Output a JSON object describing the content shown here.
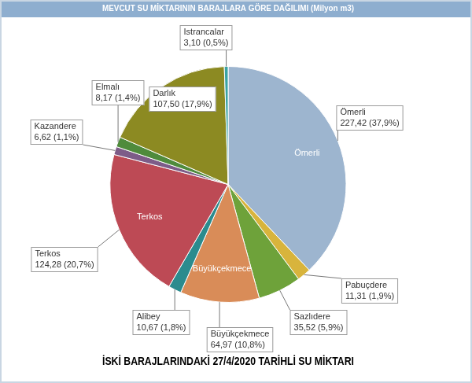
{
  "chart_data": {
    "type": "pie",
    "title": "MEVCUT SU MİKTARININ BARAJLARA GÖRE DAĞILIMI (Milyon m3)",
    "subtitle": "İSKİ BARAJLARINDAKİ 27/4/2020 TARİHLİ SU MİKTARI",
    "categories": [
      "Ömerli",
      "Pabuçdere",
      "Sazlıdere",
      "Büyükçekmece",
      "Alibey",
      "Terkos",
      "Kazandere",
      "Elmalı",
      "Darlık",
      "Istrancalar"
    ],
    "values": [
      227.42,
      11.31,
      35.52,
      64.97,
      10.67,
      124.28,
      6.62,
      8.17,
      107.5,
      3.1
    ],
    "value_labels": [
      "227,42 (37,9%)",
      "11,31 (1,9%)",
      "35,52 (5,9%)",
      "64,97 (10,8%)",
      "10,67 (1,8%)",
      "124,28 (20,7%)",
      "6,62 (1,1%)",
      "8,17 (1,4%)",
      "107,50 (17,9%)",
      "3,10 (0,5%)"
    ],
    "inside_labels": [
      "Ömerli",
      null,
      null,
      "Büyükçekmece",
      null,
      "Terkos",
      null,
      null,
      null,
      null
    ],
    "colors": [
      "#9db5cf",
      "#d8b43c",
      "#6ea23a",
      "#d98c58",
      "#2b8b8e",
      "#bd4a55",
      "#7d5c88",
      "#4f8b3c",
      "#8c8a22",
      "#3aa3a3"
    ],
    "data_labels": true
  }
}
